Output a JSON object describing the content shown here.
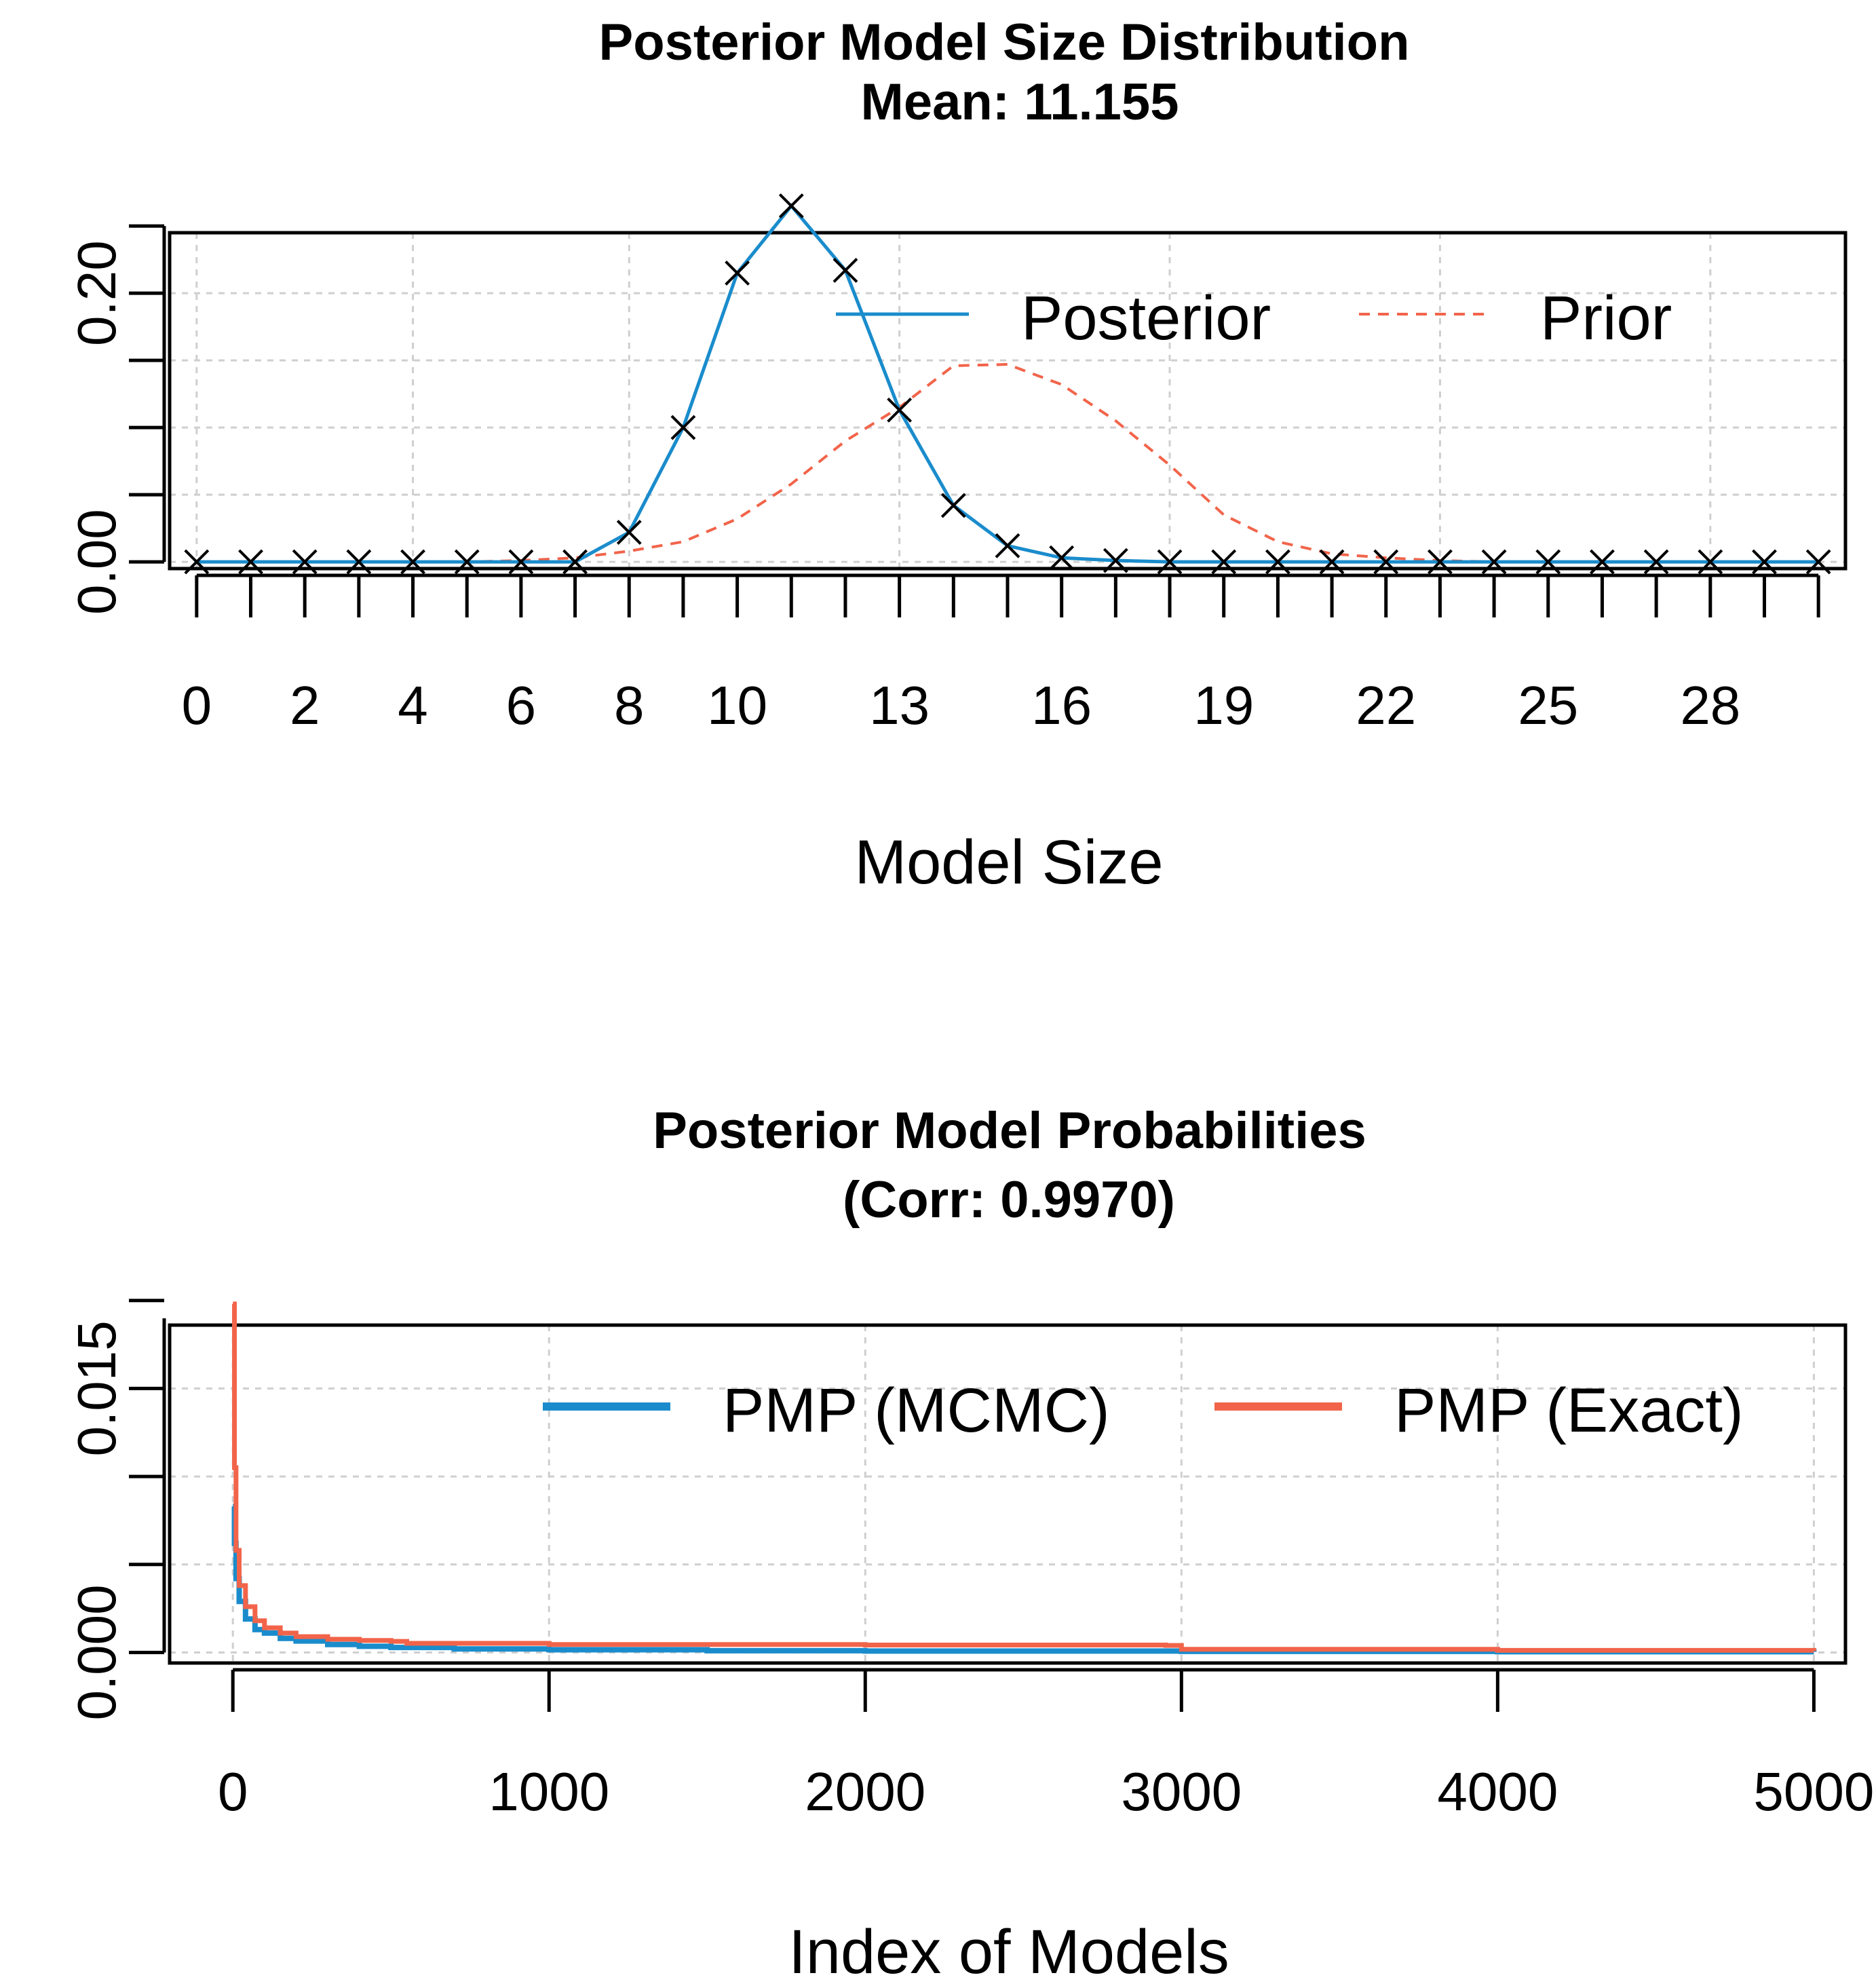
{
  "colors": {
    "posterior": "#1a8ccc",
    "prior": "#f2644a",
    "mcmc": "#1a8ccc",
    "exact": "#f2644a",
    "marker": "#000000"
  },
  "chart_data": [
    {
      "type": "line",
      "title": "Posterior Model Size Distribution",
      "subtitle": "Mean: 11.155",
      "xlabel": "Model Size",
      "ylabel": "",
      "xlim": [
        -0.5,
        30.5
      ],
      "ylim": [
        -0.005,
        0.245
      ],
      "x_ticks": [
        0,
        1,
        2,
        3,
        4,
        5,
        6,
        7,
        8,
        9,
        10,
        11,
        12,
        13,
        14,
        15,
        16,
        17,
        18,
        19,
        20,
        21,
        22,
        23,
        24,
        25,
        26,
        27,
        28,
        29,
        30
      ],
      "x_tick_labels": [
        {
          "value": 0,
          "label": "0"
        },
        {
          "value": 2,
          "label": "2"
        },
        {
          "value": 4,
          "label": "4"
        },
        {
          "value": 6,
          "label": "6"
        },
        {
          "value": 8,
          "label": "8"
        },
        {
          "value": 10,
          "label": "10"
        },
        {
          "value": 13,
          "label": "13"
        },
        {
          "value": 16,
          "label": "16"
        },
        {
          "value": 19,
          "label": "19"
        },
        {
          "value": 22,
          "label": "22"
        },
        {
          "value": 25,
          "label": "25"
        },
        {
          "value": 28,
          "label": "28"
        }
      ],
      "y_ticks": [
        0,
        0.05,
        0.1,
        0.15,
        0.2,
        0.25
      ],
      "y_tick_labels": [
        {
          "value": 0,
          "label": "0.00"
        },
        {
          "value": 0.2,
          "label": "0.20"
        }
      ],
      "legend": [
        "Posterior",
        "Prior"
      ],
      "legend_position": "top-right",
      "series": [
        {
          "name": "Posterior",
          "style": "solid",
          "markers": "x",
          "x": [
            0,
            1,
            2,
            3,
            4,
            5,
            6,
            7,
            8,
            9,
            10,
            11,
            12,
            13,
            14,
            15,
            16,
            17,
            18,
            19,
            20,
            21,
            22,
            23,
            24,
            25,
            26,
            27,
            28,
            29,
            30
          ],
          "y": [
            0,
            0,
            0,
            0,
            0,
            0,
            0,
            0,
            0.022,
            0.1,
            0.215,
            0.265,
            0.217,
            0.113,
            0.042,
            0.012,
            0.003,
            0.001,
            0,
            0,
            0,
            0,
            0,
            0,
            0,
            0,
            0,
            0,
            0,
            0,
            0
          ]
        },
        {
          "name": "Prior",
          "style": "dashed",
          "x": [
            0,
            1,
            2,
            3,
            4,
            5,
            6,
            7,
            8,
            9,
            10,
            11,
            12,
            13,
            14,
            15,
            16,
            17,
            18,
            19,
            20,
            21,
            22,
            23,
            24,
            25,
            26,
            27,
            28,
            29,
            30
          ],
          "y": [
            0,
            0,
            0,
            0,
            0,
            0,
            0.001,
            0.003,
            0.008,
            0.015,
            0.032,
            0.058,
            0.09,
            0.115,
            0.146,
            0.147,
            0.132,
            0.105,
            0.072,
            0.035,
            0.015,
            0.006,
            0.003,
            0.001,
            0,
            0,
            0,
            0,
            0,
            0,
            0
          ]
        }
      ]
    },
    {
      "type": "line",
      "title": "Posterior Model Probabilities",
      "subtitle": "(Corr: 0.9970)",
      "xlabel": "Index of Models",
      "ylabel": "",
      "xlim": [
        -200,
        5100
      ],
      "ylim": [
        -0.0006,
        0.0186
      ],
      "x_ticks": [
        0,
        1000,
        2000,
        3000,
        4000,
        5000
      ],
      "x_tick_labels": [
        {
          "value": 0,
          "label": "0"
        },
        {
          "value": 1000,
          "label": "1000"
        },
        {
          "value": 2000,
          "label": "2000"
        },
        {
          "value": 3000,
          "label": "3000"
        },
        {
          "value": 4000,
          "label": "4000"
        },
        {
          "value": 5000,
          "label": "5000"
        }
      ],
      "y_ticks": [
        0,
        0.005,
        0.01,
        0.015,
        0.02
      ],
      "y_tick_labels": [
        {
          "value": 0,
          "label": "0.000"
        },
        {
          "value": 0.015,
          "label": "0.015"
        }
      ],
      "legend": [
        "PMP (MCMC)",
        "PMP (Exact)"
      ],
      "legend_position": "top-right",
      "series": [
        {
          "name": "PMP (MCMC)",
          "style": "solid",
          "x": [
            0,
            5,
            10,
            20,
            40,
            70,
            100,
            150,
            200,
            300,
            400,
            500,
            700,
            1000,
            1500,
            2000,
            3000,
            4000,
            5000
          ],
          "y": [
            0.0083,
            0.0062,
            0.0042,
            0.0029,
            0.0019,
            0.0013,
            0.0011,
            0.0008,
            0.00065,
            0.00045,
            0.00035,
            0.00028,
            0.0002,
            0.00015,
            0.0001,
            8e-05,
            6e-05,
            4e-05,
            3e-05
          ]
        },
        {
          "name": "PMP (Exact)",
          "style": "solid",
          "x": [
            0,
            5,
            10,
            20,
            40,
            70,
            100,
            150,
            200,
            300,
            400,
            500,
            550,
            1000,
            2000,
            2950,
            3000,
            4000,
            5000
          ],
          "y": [
            0.0198,
            0.0105,
            0.0058,
            0.0038,
            0.0026,
            0.0018,
            0.0014,
            0.0011,
            0.0009,
            0.00075,
            0.00068,
            0.00063,
            0.00052,
            0.00045,
            0.00042,
            0.0004,
            0.00018,
            0.00012,
            8e-05
          ]
        }
      ]
    }
  ]
}
